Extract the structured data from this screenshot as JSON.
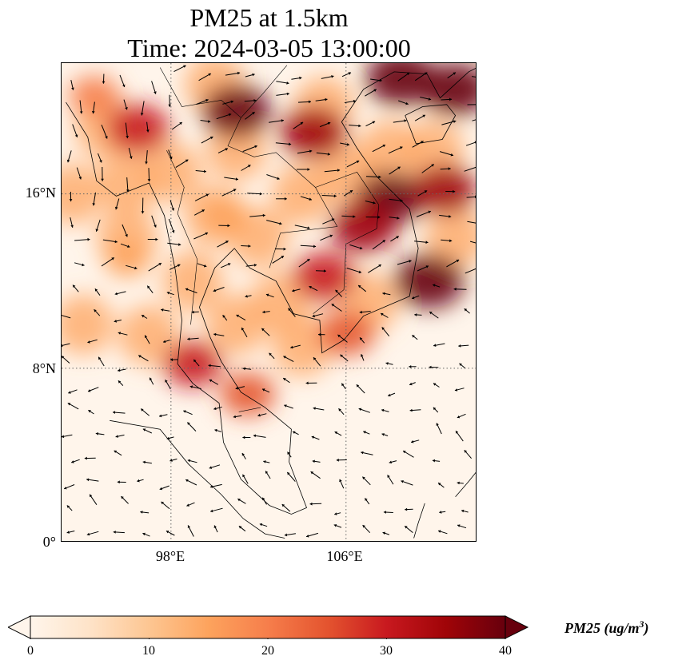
{
  "title": {
    "line1": "PM25 at 1.5km",
    "line2": "Time: 2024-03-05 13:00:00"
  },
  "map": {
    "extent": {
      "lon_min": 93,
      "lon_max": 112,
      "lat_min": 0,
      "lat_max": 22
    },
    "gridlines": "dotted",
    "lat_ticks": [
      {
        "value": 16,
        "label": "16°N"
      },
      {
        "value": 8,
        "label": "8°N"
      },
      {
        "value": 0,
        "label": "0°"
      }
    ],
    "lon_ticks": [
      {
        "value": 98,
        "label": "98°E"
      },
      {
        "value": 106,
        "label": "106°E"
      }
    ],
    "wind_vectors": "black arrows",
    "hotspots": [
      {
        "lon": 101.0,
        "lat": 19.8,
        "level": 38
      },
      {
        "lon": 108.5,
        "lat": 21.3,
        "level": 40
      },
      {
        "lon": 111.0,
        "lat": 20.8,
        "level": 38
      },
      {
        "lon": 104.5,
        "lat": 18.8,
        "level": 36
      },
      {
        "lon": 108.0,
        "lat": 15.8,
        "level": 38
      },
      {
        "lon": 106.8,
        "lat": 14.5,
        "level": 36
      },
      {
        "lon": 109.8,
        "lat": 12.0,
        "level": 40
      },
      {
        "lon": 105.0,
        "lat": 12.2,
        "level": 32
      },
      {
        "lon": 96.5,
        "lat": 19.0,
        "level": 32
      },
      {
        "lon": 110.5,
        "lat": 16.2,
        "level": 34
      },
      {
        "lon": 99.0,
        "lat": 8.2,
        "level": 28
      },
      {
        "lon": 101.5,
        "lat": 6.8,
        "level": 24
      },
      {
        "lon": 106.0,
        "lat": 9.6,
        "level": 26
      },
      {
        "lon": 94.5,
        "lat": 20.5,
        "level": 20
      },
      {
        "lon": 100.5,
        "lat": 15.0,
        "level": 14
      },
      {
        "lon": 96.0,
        "lat": 13.0,
        "level": 14
      }
    ]
  },
  "colorbar": {
    "min": 0,
    "max": 40,
    "extend": "both",
    "ticks": [
      {
        "value": 0,
        "label": "0"
      },
      {
        "value": 10,
        "label": "10"
      },
      {
        "value": 20,
        "label": "20"
      },
      {
        "value": 30,
        "label": "30"
      },
      {
        "value": 40,
        "label": "40"
      }
    ],
    "label_main": "PM25 (ug/m",
    "label_sup": "3",
    "label_close": ")",
    "colors": [
      "#fff5eb",
      "#fee3c8",
      "#fdc692",
      "#fda35d",
      "#f67e4b",
      "#e4542f",
      "#c8191f",
      "#a00408",
      "#67000d"
    ]
  }
}
